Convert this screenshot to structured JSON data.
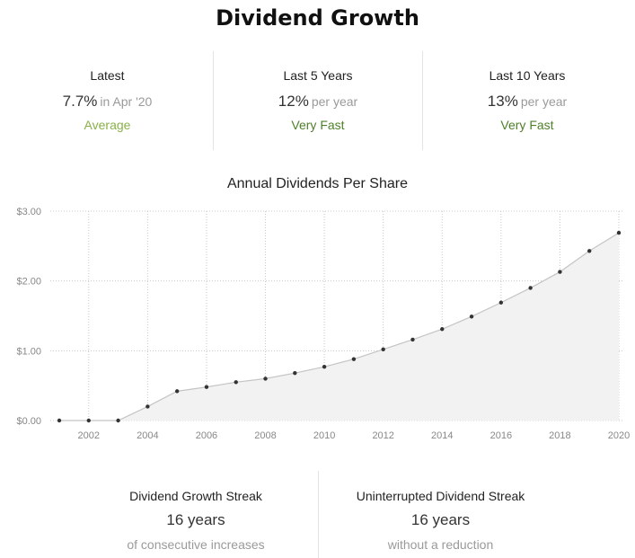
{
  "header": {
    "title": "Dividend Growth"
  },
  "stats": [
    {
      "label": "Latest",
      "value": "7.7%",
      "unit": "in Apr '20",
      "rating": "Average",
      "rating_color": "#8ab04a"
    },
    {
      "label": "Last 5 Years",
      "value": "12%",
      "unit": "per year",
      "rating": "Very Fast",
      "rating_color": "#4f7f2a"
    },
    {
      "label": "Last 10 Years",
      "value": "13%",
      "unit": "per year",
      "rating": "Very Fast",
      "rating_color": "#4f7f2a"
    }
  ],
  "chart_data": {
    "type": "area",
    "title": "Annual Dividends Per Share",
    "xlabel": "",
    "ylabel": "",
    "x": [
      2001,
      2002,
      2003,
      2004,
      2005,
      2006,
      2007,
      2008,
      2009,
      2010,
      2011,
      2012,
      2013,
      2014,
      2015,
      2016,
      2017,
      2018,
      2019,
      2020
    ],
    "series": [
      {
        "values": [
          0.0,
          0.0,
          0.0,
          0.2,
          0.42,
          0.48,
          0.55,
          0.6,
          0.68,
          0.77,
          0.88,
          1.02,
          1.16,
          1.31,
          1.49,
          1.69,
          1.9,
          2.13,
          2.43,
          2.69
        ]
      }
    ],
    "xlim": [
      2001,
      2020
    ],
    "ylim": [
      0,
      3
    ],
    "y_ticks": [
      0,
      1,
      2,
      3
    ],
    "y_tick_labels": [
      "$0.00",
      "$1.00",
      "$2.00",
      "$3.00"
    ],
    "x_ticks": [
      2002,
      2004,
      2006,
      2008,
      2010,
      2012,
      2014,
      2016,
      2018,
      2020
    ],
    "x_tick_labels": [
      "2002",
      "2004",
      "2006",
      "2008",
      "2010",
      "2012",
      "2014",
      "2016",
      "2018",
      "2020"
    ],
    "grid": true,
    "colors": {
      "line": "#c4c4c4",
      "fill": "#f2f2f2",
      "point": "#333333",
      "grid": "#c8c8c8",
      "tick_label": "#888888"
    }
  },
  "streaks": [
    {
      "label": "Dividend Growth Streak",
      "value": "16 years",
      "sub": "of consecutive increases"
    },
    {
      "label": "Uninterrupted Dividend Streak",
      "value": "16 years",
      "sub": "without a reduction"
    }
  ]
}
